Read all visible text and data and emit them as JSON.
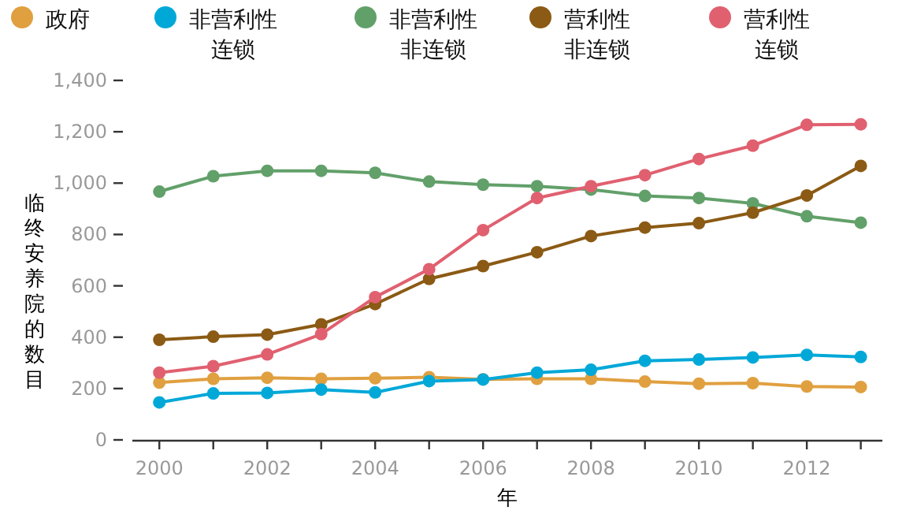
{
  "chart_data": {
    "type": "line",
    "xlabel": "年",
    "ylabel": "临终安养院的数目",
    "x": [
      2000,
      2001,
      2002,
      2003,
      2004,
      2005,
      2006,
      2007,
      2008,
      2009,
      2010,
      2011,
      2012,
      2013
    ],
    "series": [
      {
        "name": "政府",
        "color": "#e0a040",
        "values": [
          223,
          238,
          242,
          238,
          240,
          244,
          236,
          238,
          238,
          227,
          219,
          221,
          208,
          206
        ]
      },
      {
        "name": "非营利性连锁",
        "color": "#00a8d8",
        "values": [
          146,
          181,
          183,
          196,
          185,
          229,
          235,
          262,
          273,
          308,
          313,
          321,
          331,
          323
        ]
      },
      {
        "name": "非营利性非连锁",
        "color": "#62a06a",
        "values": [
          967,
          1027,
          1048,
          1048,
          1040,
          1006,
          994,
          988,
          975,
          950,
          942,
          921,
          871,
          846
        ]
      },
      {
        "name": "营利性非连锁",
        "color": "#8b5a14",
        "values": [
          390,
          402,
          410,
          450,
          529,
          627,
          677,
          731,
          794,
          827,
          844,
          885,
          952,
          1067
        ]
      },
      {
        "name": "营利性连锁",
        "color": "#e06070",
        "values": [
          262,
          287,
          333,
          412,
          556,
          665,
          817,
          942,
          988,
          1031,
          1094,
          1146,
          1227,
          1229
        ]
      }
    ],
    "xlim": [
      1999.5,
      2013.4
    ],
    "ylim": [
      0,
      1400
    ],
    "xticks": [
      2000,
      {
        "value": 2001,
        "label": null
      },
      2002,
      {
        "value": 2003,
        "label": null
      },
      2004,
      {
        "value": 2005,
        "label": null
      },
      2006,
      {
        "value": 2007,
        "label": null
      },
      2008,
      {
        "value": 2009,
        "label": null
      },
      2010,
      {
        "value": 2011,
        "label": null
      },
      2012,
      {
        "value": 2013,
        "label": null
      }
    ],
    "yticks": [
      0,
      200,
      400,
      600,
      800,
      {
        "value": 1000,
        "label": "1,000"
      },
      {
        "value": 1200,
        "label": "1,200"
      },
      {
        "value": 1400,
        "label": "1,400"
      }
    ],
    "legend": "top",
    "marker": "circle",
    "line_style": "solid",
    "grid": false
  }
}
